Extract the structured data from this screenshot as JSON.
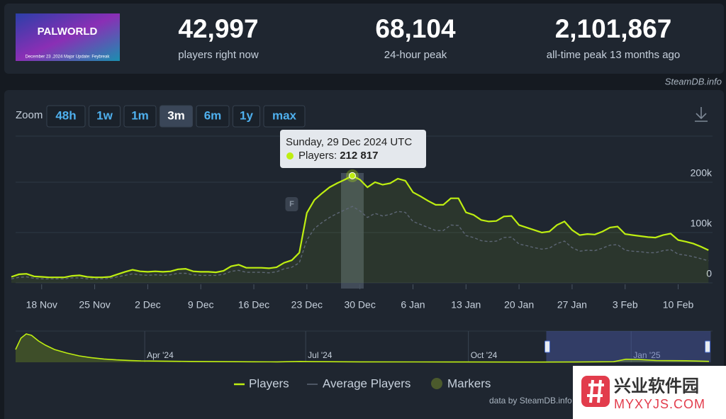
{
  "header": {
    "logo": {
      "title": "PALWORLD",
      "caption": "December 23 ,2024 Major Update: Feybreak"
    },
    "stats": [
      {
        "value": "42,997",
        "label": "players right now"
      },
      {
        "value": "68,104",
        "label": "24-hour peak"
      },
      {
        "value": "2,101,867",
        "label": "all-time peak 13 months ago"
      }
    ]
  },
  "source": "SteamDB.info",
  "zoom": {
    "label": "Zoom",
    "options": [
      "48h",
      "1w",
      "1m",
      "3m",
      "6m",
      "1y",
      "max"
    ],
    "active": "3m"
  },
  "chart_data": {
    "type": "line",
    "x": [
      "2024-11-14",
      "2024-11-15",
      "2024-11-16",
      "2024-11-17",
      "2024-11-18",
      "2024-11-19",
      "2024-11-20",
      "2024-11-21",
      "2024-11-22",
      "2024-11-23",
      "2024-11-24",
      "2024-11-25",
      "2024-11-26",
      "2024-11-27",
      "2024-11-28",
      "2024-11-29",
      "2024-11-30",
      "2024-12-01",
      "2024-12-02",
      "2024-12-03",
      "2024-12-04",
      "2024-12-05",
      "2024-12-06",
      "2024-12-07",
      "2024-12-08",
      "2024-12-09",
      "2024-12-10",
      "2024-12-11",
      "2024-12-12",
      "2024-12-13",
      "2024-12-14",
      "2024-12-15",
      "2024-12-16",
      "2024-12-17",
      "2024-12-18",
      "2024-12-19",
      "2024-12-20",
      "2024-12-21",
      "2024-12-22",
      "2024-12-23",
      "2024-12-24",
      "2024-12-25",
      "2024-12-26",
      "2024-12-27",
      "2024-12-28",
      "2024-12-29",
      "2024-12-30",
      "2024-12-31",
      "2025-01-01",
      "2025-01-02",
      "2025-01-03",
      "2025-01-04",
      "2025-01-05",
      "2025-01-06",
      "2025-01-07",
      "2025-01-08",
      "2025-01-09",
      "2025-01-10",
      "2025-01-11",
      "2025-01-12",
      "2025-01-13",
      "2025-01-14",
      "2025-01-15",
      "2025-01-16",
      "2025-01-17",
      "2025-01-18",
      "2025-01-19",
      "2025-01-20",
      "2025-01-21",
      "2025-01-22",
      "2025-01-23",
      "2025-01-24",
      "2025-01-25",
      "2025-01-26",
      "2025-01-27",
      "2025-01-28",
      "2025-01-29",
      "2025-01-30",
      "2025-01-31",
      "2025-02-01",
      "2025-02-02",
      "2025-02-03",
      "2025-02-04",
      "2025-02-05",
      "2025-02-06",
      "2025-02-07",
      "2025-02-08",
      "2025-02-09",
      "2025-02-10",
      "2025-02-11",
      "2025-02-12",
      "2025-02-13",
      "2025-02-14"
    ],
    "series": [
      {
        "name": "Players",
        "color": "#beee11",
        "values": [
          12000,
          17000,
          18000,
          13000,
          12000,
          11000,
          11000,
          11000,
          14000,
          15000,
          12000,
          11000,
          11000,
          12000,
          17000,
          22000,
          26000,
          23000,
          22000,
          23000,
          22000,
          23000,
          27000,
          28000,
          23000,
          22000,
          22000,
          21000,
          24000,
          33000,
          36000,
          30000,
          30000,
          30000,
          29000,
          31000,
          40000,
          45000,
          60000,
          139000,
          165000,
          178000,
          190000,
          198000,
          205000,
          212817,
          205000,
          190000,
          200000,
          195000,
          198000,
          207000,
          203000,
          180000,
          172000,
          163000,
          155000,
          155000,
          168000,
          168000,
          140000,
          135000,
          125000,
          122000,
          123000,
          132000,
          133000,
          115000,
          110000,
          105000,
          100000,
          102000,
          115000,
          122000,
          105000,
          95000,
          97000,
          96000,
          102000,
          110000,
          112000,
          97000,
          95000,
          93000,
          91000,
          90000,
          95000,
          98000,
          85000,
          82000,
          78000,
          72000,
          65000
        ]
      },
      {
        "name": "Average Players",
        "color": "#5d6675",
        "values": [
          8000,
          11000,
          12000,
          9000,
          8000,
          8000,
          8000,
          8000,
          10000,
          10000,
          8000,
          8000,
          8000,
          9000,
          12000,
          15000,
          18000,
          16000,
          15000,
          16000,
          15000,
          16000,
          19000,
          19000,
          16000,
          15000,
          15000,
          15000,
          17000,
          23000,
          25000,
          21000,
          21000,
          21000,
          20000,
          22000,
          28000,
          31000,
          40000,
          85000,
          108000,
          120000,
          130000,
          138000,
          145000,
          152000,
          143000,
          130000,
          138000,
          133000,
          136000,
          142000,
          140000,
          122000,
          116000,
          110000,
          104000,
          104000,
          115000,
          114000,
          94000,
          90000,
          84000,
          82000,
          83000,
          90000,
          91000,
          77000,
          74000,
          70000,
          67000,
          69000,
          78000,
          83000,
          70000,
          63000,
          65000,
          64000,
          69000,
          75000,
          76000,
          65000,
          63000,
          62000,
          60000,
          60000,
          64000,
          66000,
          57000,
          55000,
          52000,
          48000,
          44000
        ]
      }
    ],
    "markers_legend": "Markers",
    "markers_color": "#4b5a2c",
    "markers": [
      {
        "x": "2024-12-21",
        "label": "F"
      }
    ],
    "xlim": [
      "2024-11-14",
      "2025-02-15"
    ],
    "xticks": [
      {
        "value": "2024-11-18",
        "label": "18 Nov"
      },
      {
        "value": "2024-11-25",
        "label": "25 Nov"
      },
      {
        "value": "2024-12-02",
        "label": "2 Dec"
      },
      {
        "value": "2024-12-09",
        "label": "9 Dec"
      },
      {
        "value": "2024-12-16",
        "label": "16 Dec"
      },
      {
        "value": "2024-12-23",
        "label": "23 Dec"
      },
      {
        "value": "2024-12-30",
        "label": "30 Dec"
      },
      {
        "value": "2025-01-06",
        "label": "6 Jan"
      },
      {
        "value": "2025-01-13",
        "label": "13 Jan"
      },
      {
        "value": "2025-01-20",
        "label": "20 Jan"
      },
      {
        "value": "2025-01-27",
        "label": "27 Jan"
      },
      {
        "value": "2025-02-03",
        "label": "3 Feb"
      },
      {
        "value": "2025-02-10",
        "label": "10 Feb"
      }
    ],
    "ylim": [
      0,
      300000
    ],
    "yticks": [
      0,
      {
        "value": 100000,
        "label": "100k"
      },
      {
        "value": 200000,
        "label": "200k"
      }
    ],
    "grid": true,
    "tooltip": {
      "x": "2024-12-29",
      "title": "Sunday, 29 Dec 2024 UTC",
      "label": "Players:",
      "value_label": "212 817"
    },
    "navigator": {
      "x": [
        "2024-01-19",
        "2024-01-22",
        "2024-01-25",
        "2024-01-28",
        "2024-02-01",
        "2024-02-05",
        "2024-02-10",
        "2024-02-17",
        "2024-02-24",
        "2024-03-02",
        "2024-03-09",
        "2024-03-16",
        "2024-03-23",
        "2024-03-30",
        "2024-04-13",
        "2024-04-27",
        "2024-05-15",
        "2024-06-01",
        "2024-06-15",
        "2024-06-28",
        "2024-07-05",
        "2024-08-01",
        "2024-09-01",
        "2024-10-01",
        "2024-11-01",
        "2024-12-01",
        "2024-12-22",
        "2024-12-29",
        "2025-01-05",
        "2025-01-15",
        "2025-02-01",
        "2025-02-14"
      ],
      "values": [
        900000,
        1700000,
        2000000,
        1900000,
        1500000,
        1200000,
        900000,
        650000,
        450000,
        320000,
        230000,
        170000,
        130000,
        100000,
        80000,
        60000,
        45000,
        35000,
        30000,
        60000,
        45000,
        30000,
        25000,
        20000,
        15000,
        20000,
        40000,
        212817,
        207000,
        125000,
        110000,
        65000
      ],
      "xlim": [
        "2024-01-19",
        "2025-02-16"
      ],
      "ylim": [
        0,
        2200000
      ],
      "xticks": [
        {
          "value": "2024-04-01",
          "label": "Apr '24"
        },
        {
          "value": "2024-07-01",
          "label": "Jul '24"
        },
        {
          "value": "2024-10-01",
          "label": "Oct '24"
        },
        {
          "value": "2025-01-01",
          "label": "Jan '25"
        }
      ]
    }
  },
  "credit": "data by SteamDB.info",
  "watermark": {
    "title": "兴业软件园",
    "url": "MYXYJS.COM"
  }
}
